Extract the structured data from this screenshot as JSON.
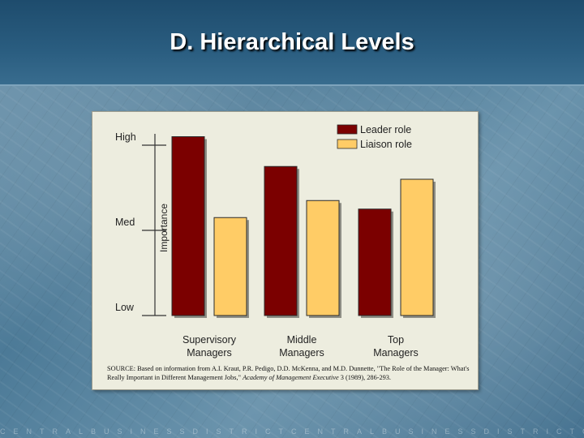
{
  "slide": {
    "title": "D. Hierarchical Levels",
    "footer_ticker": "CENTRALBUSINESSDISTRICTCENTRALBUSINESSDISTRICTCENTRA"
  },
  "colors": {
    "leader": "#7b0000",
    "liaison": "#ffcc66"
  },
  "source": {
    "part1": "SOURCE: Based on information from A.I. Kraut, P.R. Pedigo, D.D. McKenna, and M.D. Dunnette, \"The Role of the Manager: What's Really Important in Different Management Jobs,\" ",
    "journal": "Academy of Management Executive",
    "part2": " 3 (1989), 286-293."
  },
  "chart_data": {
    "type": "bar",
    "categories": [
      "Supervisory\nManagers",
      "Middle\nManagers",
      "Top\nManagers"
    ],
    "series": [
      {
        "name": "Leader role",
        "values": [
          2.1,
          1.75,
          1.25
        ]
      },
      {
        "name": "Liaison role",
        "values": [
          1.15,
          1.35,
          1.6
        ]
      }
    ],
    "ylabel": "Importance",
    "ylim": [
      0,
      2
    ],
    "yticks": [
      {
        "value": 0,
        "label": "Low"
      },
      {
        "value": 1,
        "label": "Med"
      },
      {
        "value": 2,
        "label": "High"
      }
    ],
    "legend": "top-right",
    "grid": false
  }
}
